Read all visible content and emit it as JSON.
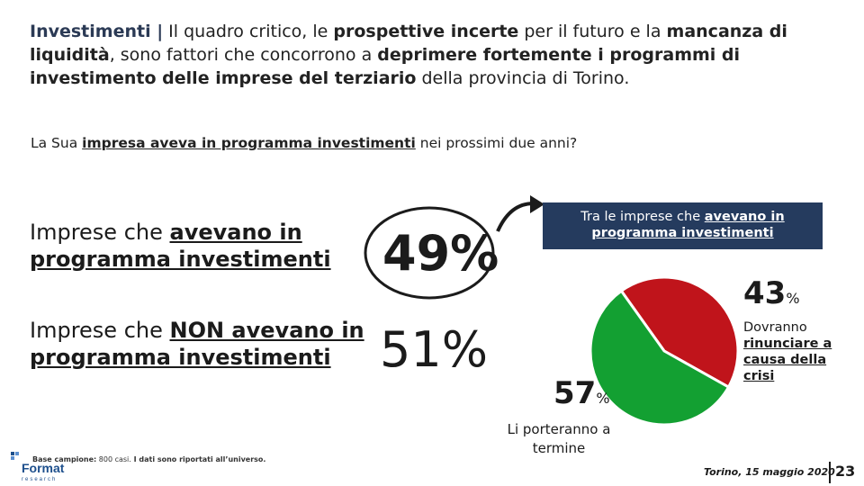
{
  "headline": {
    "lead": "Investimenti |",
    "t1": " Il quadro critico, le ",
    "b1": "prospettive incerte",
    "t2": " per il futuro e la ",
    "b2": "mancanza di liquidità",
    "t3": ", sono fattori che concorrono a ",
    "b3": "deprimere fortemente i programmi di investimento delle imprese del terziario",
    "t4": " della provincia di Torino."
  },
  "question": {
    "t1": "La Sua ",
    "u1": "impresa aveva in programma investimenti",
    "t2": " nei prossimi due anni?"
  },
  "rows": {
    "r1_t1": "Imprese che ",
    "r1_u1": "avevano in programma investimenti",
    "r2_t1": "Imprese che ",
    "r2_u1": "NON avevano in programma investimenti"
  },
  "chart_data": [
    {
      "type": "table",
      "categories": [
        "Imprese che avevano in programma investimenti",
        "Imprese che NON avevano in programma investimenti"
      ],
      "values": [
        49,
        51
      ],
      "value_labels": [
        "49%",
        "51%"
      ]
    },
    {
      "type": "pie",
      "title": "Tra le imprese che avevano in programma investimenti",
      "categories": [
        "Dovranno rinunciare a causa della crisi",
        "Li porteranno a termine"
      ],
      "values": [
        43,
        57
      ],
      "colors": [
        "#c0141b",
        "#13a032"
      ]
    }
  ],
  "pie_labels": {
    "v43": "43",
    "v57": "57",
    "pct": "%",
    "box_t1": "Tra le imprese che ",
    "box_u1": "avevano in programma investimenti",
    "l43_t1": "Dovranno ",
    "l43_u1": "rinunciare a causa della crisi",
    "l57": "Li porteranno a termine"
  },
  "footer": {
    "base_lead": "Base campione:",
    "base_n": " 800 casi.",
    "base_b": " I dati sono riportati all’universo.",
    "logo_top": "Format",
    "logo_bottom": "research",
    "date": "Torino, 15 maggio 2020",
    "page": "23"
  },
  "colors": {
    "accent_navy": "#253b5e",
    "red": "#c0141b",
    "green": "#13a032"
  }
}
